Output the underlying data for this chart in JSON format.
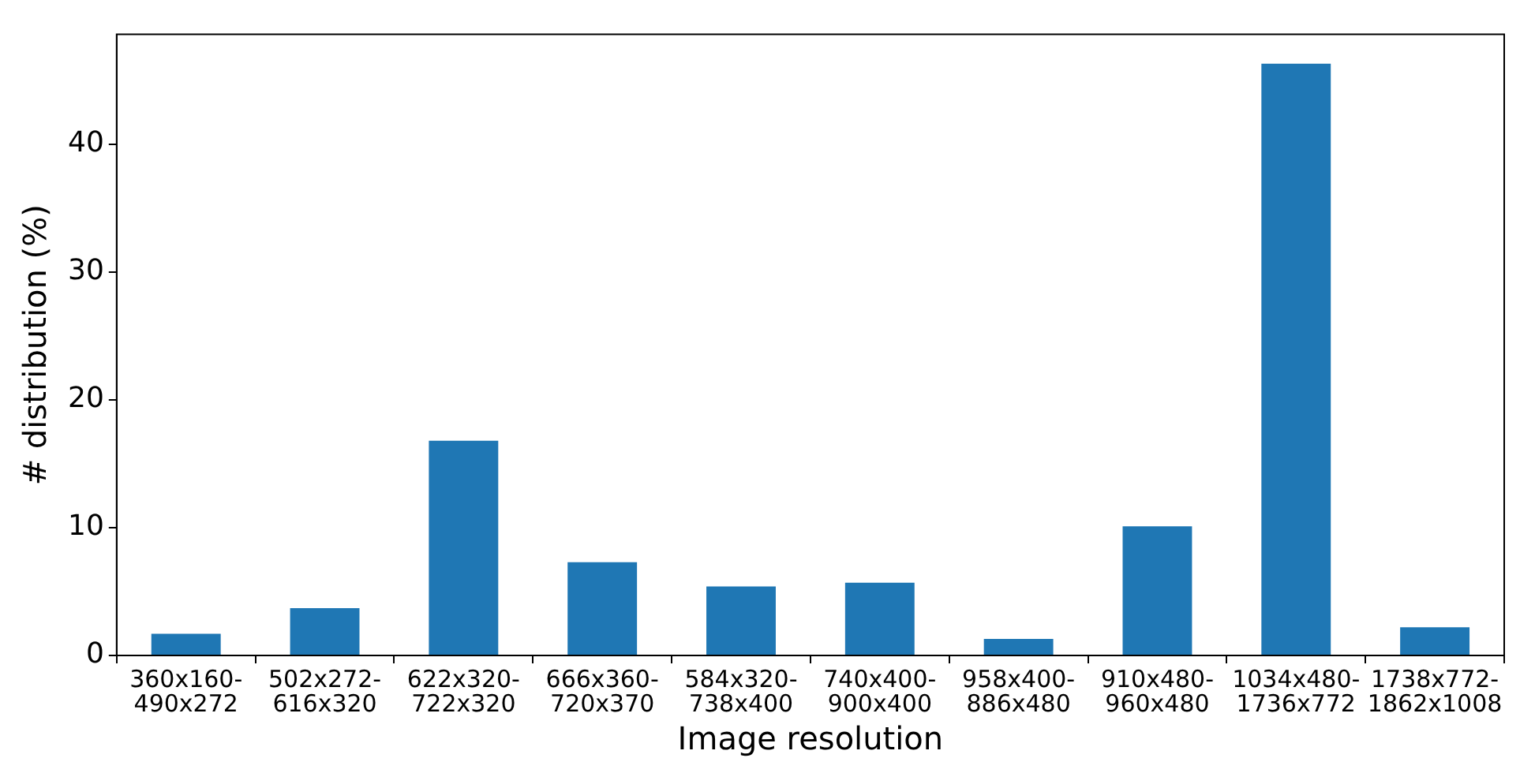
{
  "chart_data": {
    "type": "bar",
    "xlabel": "Image resolution",
    "ylabel": "# distribution (%)",
    "categories": [
      "360x160-\n490x272",
      "502x272-\n616x320",
      "622x320-\n722x320",
      "666x360-\n720x370",
      "584x320-\n738x400",
      "740x400-\n900x400",
      "958x400-\n886x480",
      "910x480-\n960x480",
      "1034x480-\n1736x772",
      "1738x772-\n1862x1008"
    ],
    "values": [
      1.7,
      3.7,
      16.8,
      7.3,
      5.4,
      5.7,
      1.3,
      10.1,
      46.3,
      2.2
    ],
    "color": "#1f77b4",
    "ylim": [
      0,
      48.6
    ],
    "yticks": [
      0,
      10,
      20,
      30,
      40
    ],
    "grid": false,
    "legend": false
  }
}
